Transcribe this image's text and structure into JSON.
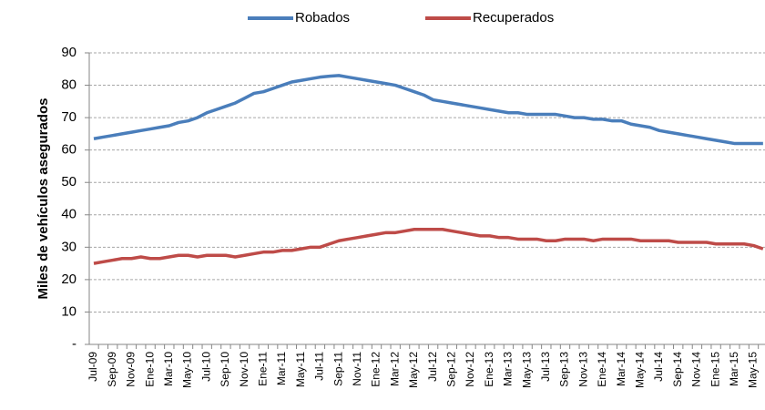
{
  "chart_data": {
    "type": "line",
    "y_label": "Miles de vehículos asegurados",
    "categories": [
      "Jul-09",
      null,
      "Sep-09",
      null,
      "Nov-09",
      null,
      "Ene-10",
      null,
      "Mar-10",
      null,
      "May-10",
      null,
      "Jul-10",
      null,
      "Sep-10",
      null,
      "Nov-10",
      null,
      "Ene-11",
      null,
      "Mar-11",
      null,
      "May-11",
      null,
      "Jul-11",
      null,
      "Sep-11",
      null,
      "Nov-11",
      null,
      "Ene-12",
      null,
      "Mar-12",
      null,
      "May-12",
      null,
      "Jul-12",
      null,
      "Sep-12",
      null,
      "Nov-12",
      null,
      "Ene-13",
      null,
      "Mar-13",
      null,
      "May-13",
      null,
      "Jul-13",
      null,
      "Sep-13",
      null,
      "Nov-13",
      null,
      "Ene-14",
      null,
      "Mar-14",
      null,
      "May-14",
      null,
      "Jul-14",
      null,
      "Sep-14",
      null,
      "Nov-14",
      null,
      "Ene-15",
      null,
      "Mar-15",
      null,
      "May-15",
      null
    ],
    "series": [
      {
        "name": "Robados",
        "color": "#4a7ebb",
        "values": [
          63.5,
          64,
          64.5,
          65,
          65.5,
          66,
          66.5,
          67,
          67.5,
          68.5,
          69,
          70,
          71.5,
          72.5,
          73.5,
          74.5,
          76,
          77.5,
          78,
          79,
          80,
          81,
          81.5,
          82,
          82.5,
          82.8,
          83,
          82.5,
          82,
          81.5,
          81,
          80.5,
          80,
          79,
          78,
          77,
          75.5,
          75,
          74.5,
          74,
          73.5,
          73,
          72.5,
          72,
          71.5,
          71.5,
          71,
          71,
          71,
          71,
          70.5,
          70,
          70,
          69.5,
          69.5,
          69,
          69,
          68,
          67.5,
          67,
          66,
          65.5,
          65,
          64.5,
          64,
          63.5,
          63,
          62.5,
          62,
          62,
          62,
          62
        ]
      },
      {
        "name": "Recuperados",
        "color": "#be4b48",
        "values": [
          25,
          25.5,
          26,
          26.5,
          26.5,
          27,
          26.5,
          26.5,
          27,
          27.5,
          27.5,
          27,
          27.5,
          27.5,
          27.5,
          27,
          27.5,
          28,
          28.5,
          28.5,
          29,
          29,
          29.5,
          30,
          30,
          31,
          32,
          32.5,
          33,
          33.5,
          34,
          34.5,
          34.5,
          35,
          35.5,
          35.5,
          35.5,
          35.5,
          35,
          34.5,
          34,
          33.5,
          33.5,
          33,
          33,
          32.5,
          32.5,
          32.5,
          32,
          32,
          32.5,
          32.5,
          32.5,
          32,
          32.5,
          32.5,
          32.5,
          32.5,
          32,
          32,
          32,
          32,
          31.5,
          31.5,
          31.5,
          31.5,
          31,
          31,
          31,
          31,
          30.5,
          29.5
        ]
      }
    ],
    "ylim": [
      0,
      90
    ],
    "yticks": [
      {
        "value": 0,
        "label": "-"
      },
      10,
      20,
      30,
      40,
      50,
      60,
      70,
      80,
      90
    ],
    "grid": true,
    "legend": "top"
  }
}
